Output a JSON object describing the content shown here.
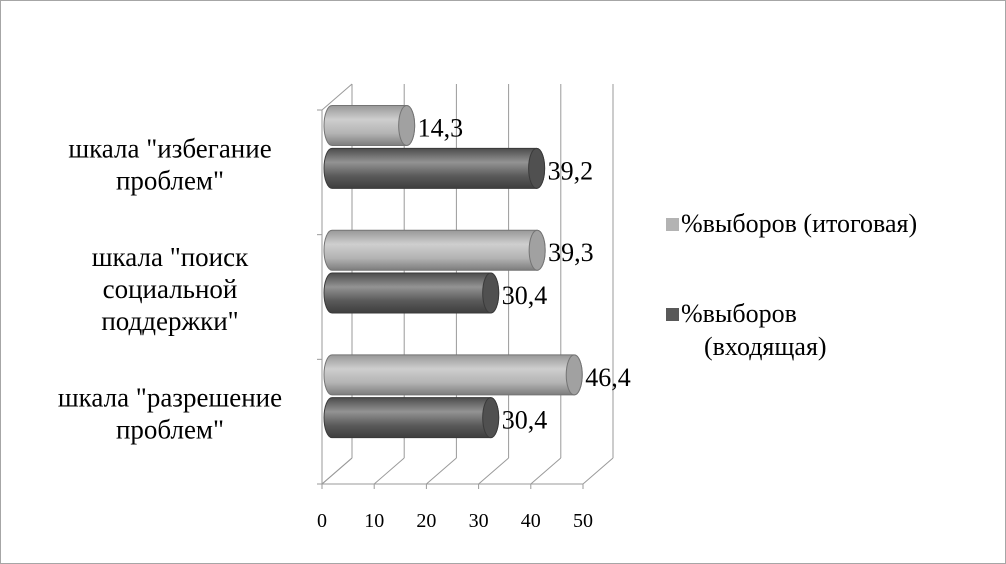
{
  "chart_data": {
    "type": "bar",
    "orientation": "horizontal",
    "style": "3d-cylinder",
    "categories": [
      "шкала \"избегание проблем\"",
      "шкала \"поиск социальной поддержки\"",
      "шкала \"разрешение проблем\""
    ],
    "category_lines": [
      [
        "шкала \"избегание",
        "проблем\""
      ],
      [
        "шкала \"поиск",
        "социальной",
        "поддержки\""
      ],
      [
        "шкала \"разрешение",
        "проблем\""
      ]
    ],
    "series": [
      {
        "name": "%выборов (итоговая)",
        "legend_lines": [
          "%выборов (итоговая)"
        ],
        "color": "#b3b3b3",
        "values": [
          14.3,
          39.3,
          46.4
        ],
        "labels": [
          "14,3",
          "39,3",
          "46,4"
        ]
      },
      {
        "name": "%выборов (входящая)",
        "legend_lines": [
          "%выборов",
          "(входящая)"
        ],
        "color": "#595959",
        "values": [
          39.2,
          30.4,
          30.4
        ],
        "labels": [
          "39,2",
          "30,4",
          "30,4"
        ]
      }
    ],
    "xlim": [
      0,
      50
    ],
    "xticks": [
      "0",
      "10",
      "20",
      "30",
      "40",
      "50"
    ],
    "grid": true,
    "legend": "right"
  }
}
